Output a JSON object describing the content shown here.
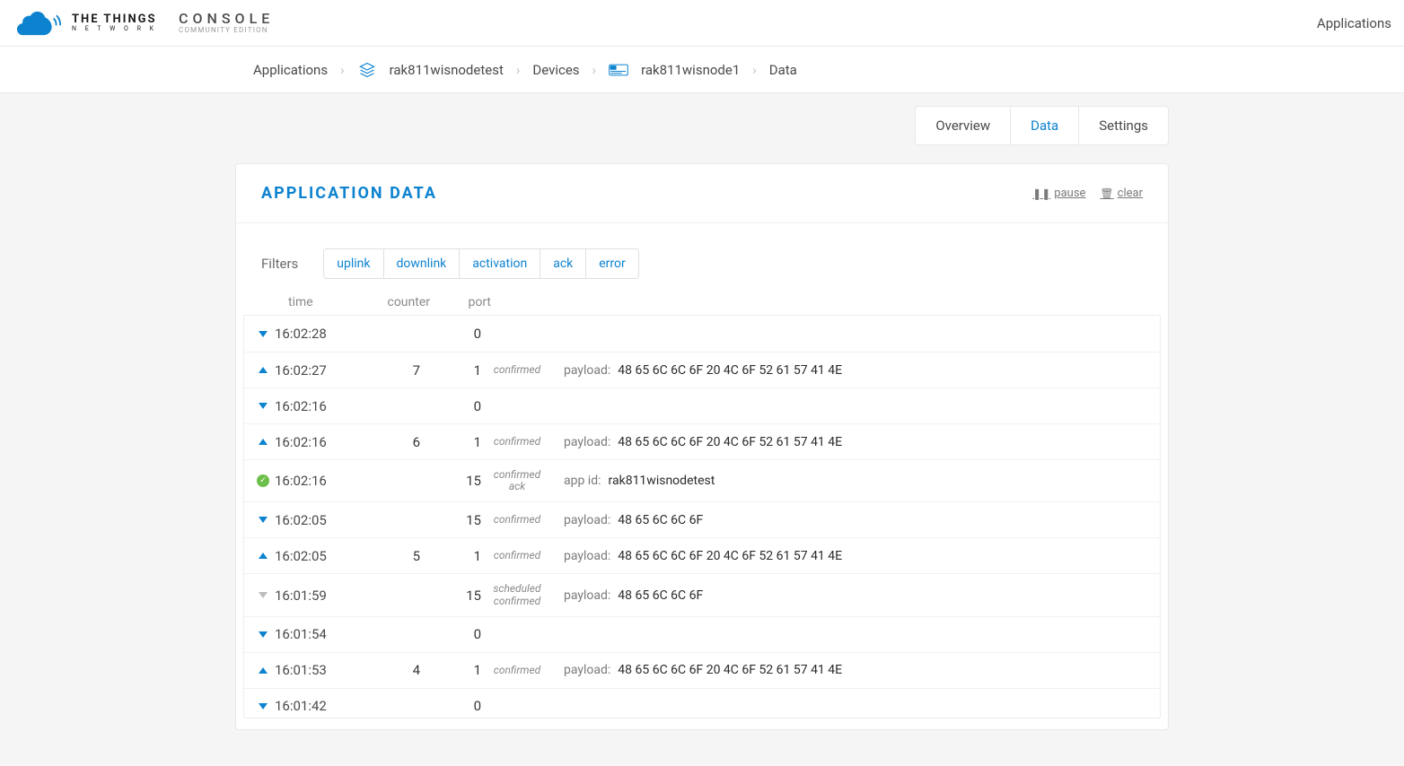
{
  "header": {
    "logo_line1_bold": "THE THINGS",
    "logo_line2": "N E T W O R K",
    "console_line1": "CONSOLE",
    "console_line2": "COMMUNITY EDITION",
    "nav_link": "Applications"
  },
  "breadcrumb": {
    "items": [
      {
        "label": "Applications"
      },
      {
        "label": "rak811wisnodetest",
        "icon": "layers"
      },
      {
        "label": "Devices"
      },
      {
        "label": "rak811wisnode1",
        "icon": "device"
      },
      {
        "label": "Data"
      }
    ]
  },
  "tabs": {
    "items": [
      {
        "label": "Overview",
        "active": false
      },
      {
        "label": "Data",
        "active": true
      },
      {
        "label": "Settings",
        "active": false
      }
    ]
  },
  "panel": {
    "title": "APPLICATION DATA",
    "pause": "pause",
    "clear": "clear"
  },
  "filters": {
    "label": "Filters",
    "items": [
      "uplink",
      "downlink",
      "activation",
      "ack",
      "error"
    ]
  },
  "columns": {
    "time": "time",
    "counter": "counter",
    "port": "port"
  },
  "rows": [
    {
      "icon": "down-blue",
      "time": "16:02:28",
      "counter": "",
      "port": "0",
      "status": "",
      "meta_label": "",
      "meta_val": ""
    },
    {
      "icon": "up-blue",
      "time": "16:02:27",
      "counter": "7",
      "port": "1",
      "status": "confirmed",
      "meta_label": "payload:",
      "meta_val": "48 65 6C 6C 6F 20 4C 6F 52 61 57 41 4E"
    },
    {
      "icon": "down-blue",
      "time": "16:02:16",
      "counter": "",
      "port": "0",
      "status": "",
      "meta_label": "",
      "meta_val": ""
    },
    {
      "icon": "up-blue",
      "time": "16:02:16",
      "counter": "6",
      "port": "1",
      "status": "confirmed",
      "meta_label": "payload:",
      "meta_val": "48 65 6C 6C 6F 20 4C 6F 52 61 57 41 4E"
    },
    {
      "icon": "ack",
      "time": "16:02:16",
      "counter": "",
      "port": "15",
      "status": "confirmed\nack",
      "meta_label": "app id:",
      "meta_val": "rak811wisnodetest"
    },
    {
      "icon": "down-blue",
      "time": "16:02:05",
      "counter": "",
      "port": "15",
      "status": "confirmed",
      "meta_label": "payload:",
      "meta_val": "48 65 6C 6C 6F"
    },
    {
      "icon": "up-blue",
      "time": "16:02:05",
      "counter": "5",
      "port": "1",
      "status": "confirmed",
      "meta_label": "payload:",
      "meta_val": "48 65 6C 6C 6F 20 4C 6F 52 61 57 41 4E"
    },
    {
      "icon": "down-grey",
      "time": "16:01:59",
      "counter": "",
      "port": "15",
      "status": "scheduled\nconfirmed",
      "meta_label": "payload:",
      "meta_val": "48 65 6C 6C 6F"
    },
    {
      "icon": "down-blue",
      "time": "16:01:54",
      "counter": "",
      "port": "0",
      "status": "",
      "meta_label": "",
      "meta_val": ""
    },
    {
      "icon": "up-blue",
      "time": "16:01:53",
      "counter": "4",
      "port": "1",
      "status": "confirmed",
      "meta_label": "payload:",
      "meta_val": "48 65 6C 6C 6F 20 4C 6F 52 61 57 41 4E"
    },
    {
      "icon": "down-blue",
      "time": "16:01:42",
      "counter": "",
      "port": "0",
      "status": "",
      "meta_label": "",
      "meta_val": ""
    }
  ],
  "colors": {
    "primary": "#0d83d0",
    "success": "#6cc04a",
    "text": "#4a4a4a",
    "muted": "#8a8a8a",
    "border": "#e8e8e8",
    "panel_bg": "#ffffff",
    "page_bg": "#f5f5f5"
  }
}
